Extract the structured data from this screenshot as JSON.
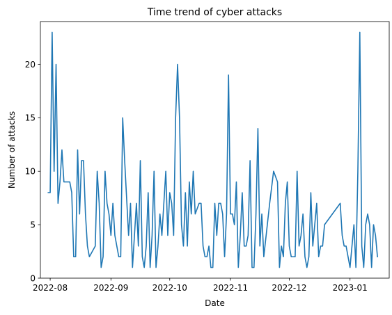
{
  "chart_data": {
    "type": "line",
    "title": "Time trend of cyber attacks",
    "xlabel": "Date",
    "ylabel": "Number of attacks",
    "xlim": [
      "2022-07-27",
      "2023-01-21"
    ],
    "ylim": [
      0,
      24
    ],
    "x_ticks": [
      "2022-08",
      "2022-09",
      "2022-10",
      "2022-11",
      "2022-12",
      "2023-01"
    ],
    "y_ticks": [
      0,
      5,
      10,
      15,
      20
    ],
    "grid": false,
    "legend": "none",
    "series": [
      {
        "color": "#1f77b4",
        "points": [
          [
            "2022-07-31",
            8
          ],
          [
            "2022-08-01",
            8
          ],
          [
            "2022-08-02",
            23
          ],
          [
            "2022-08-03",
            10
          ],
          [
            "2022-08-04",
            20
          ],
          [
            "2022-08-05",
            7
          ],
          [
            "2022-08-06",
            9
          ],
          [
            "2022-08-07",
            12
          ],
          [
            "2022-08-08",
            9
          ],
          [
            "2022-08-09",
            9
          ],
          [
            "2022-08-11",
            9
          ],
          [
            "2022-08-12",
            8
          ],
          [
            "2022-08-13",
            2
          ],
          [
            "2022-08-14",
            2
          ],
          [
            "2022-08-15",
            12
          ],
          [
            "2022-08-16",
            6
          ],
          [
            "2022-08-17",
            11
          ],
          [
            "2022-08-18",
            11
          ],
          [
            "2022-08-19",
            6
          ],
          [
            "2022-08-20",
            3
          ],
          [
            "2022-08-21",
            2
          ],
          [
            "2022-08-24",
            3
          ],
          [
            "2022-08-25",
            10
          ],
          [
            "2022-08-26",
            7
          ],
          [
            "2022-08-27",
            1
          ],
          [
            "2022-08-28",
            2
          ],
          [
            "2022-08-29",
            10
          ],
          [
            "2022-08-30",
            7
          ],
          [
            "2022-08-31",
            6
          ],
          [
            "2022-09-01",
            4
          ],
          [
            "2022-09-02",
            7
          ],
          [
            "2022-09-03",
            4
          ],
          [
            "2022-09-05",
            2
          ],
          [
            "2022-09-06",
            2
          ],
          [
            "2022-09-07",
            15
          ],
          [
            "2022-09-08",
            11
          ],
          [
            "2022-09-10",
            4
          ],
          [
            "2022-09-11",
            7
          ],
          [
            "2022-09-12",
            1
          ],
          [
            "2022-09-13",
            4
          ],
          [
            "2022-09-14",
            7
          ],
          [
            "2022-09-15",
            3
          ],
          [
            "2022-09-16",
            11
          ],
          [
            "2022-09-17",
            2
          ],
          [
            "2022-09-18",
            1
          ],
          [
            "2022-09-19",
            3
          ],
          [
            "2022-09-20",
            8
          ],
          [
            "2022-09-21",
            1
          ],
          [
            "2022-09-22",
            4
          ],
          [
            "2022-09-23",
            10
          ],
          [
            "2022-09-24",
            1
          ],
          [
            "2022-09-25",
            3
          ],
          [
            "2022-09-26",
            6
          ],
          [
            "2022-09-27",
            4
          ],
          [
            "2022-09-28",
            7
          ],
          [
            "2022-09-29",
            10
          ],
          [
            "2022-09-30",
            4
          ],
          [
            "2022-10-01",
            8
          ],
          [
            "2022-10-02",
            7
          ],
          [
            "2022-10-03",
            4
          ],
          [
            "2022-10-04",
            15
          ],
          [
            "2022-10-05",
            20
          ],
          [
            "2022-10-06",
            15
          ],
          [
            "2022-10-07",
            5
          ],
          [
            "2022-10-08",
            3
          ],
          [
            "2022-10-09",
            8
          ],
          [
            "2022-10-10",
            3
          ],
          [
            "2022-10-11",
            9
          ],
          [
            "2022-10-12",
            6
          ],
          [
            "2022-10-13",
            10
          ],
          [
            "2022-10-14",
            6
          ],
          [
            "2022-10-16",
            7
          ],
          [
            "2022-10-17",
            7
          ],
          [
            "2022-10-18",
            3
          ],
          [
            "2022-10-19",
            2
          ],
          [
            "2022-10-20",
            2
          ],
          [
            "2022-10-21",
            3
          ],
          [
            "2022-10-22",
            1
          ],
          [
            "2022-10-23",
            1
          ],
          [
            "2022-10-24",
            7
          ],
          [
            "2022-10-25",
            4
          ],
          [
            "2022-10-26",
            7
          ],
          [
            "2022-10-27",
            7
          ],
          [
            "2022-10-28",
            6
          ],
          [
            "2022-10-29",
            2
          ],
          [
            "2022-10-30",
            6
          ],
          [
            "2022-10-31",
            19
          ],
          [
            "2022-11-01",
            6
          ],
          [
            "2022-11-02",
            6
          ],
          [
            "2022-11-03",
            5
          ],
          [
            "2022-11-04",
            9
          ],
          [
            "2022-11-05",
            1
          ],
          [
            "2022-11-06",
            4
          ],
          [
            "2022-11-07",
            8
          ],
          [
            "2022-11-08",
            3
          ],
          [
            "2022-11-09",
            3
          ],
          [
            "2022-11-10",
            4
          ],
          [
            "2022-11-11",
            11
          ],
          [
            "2022-11-12",
            1
          ],
          [
            "2022-11-13",
            1
          ],
          [
            "2022-11-14",
            6
          ],
          [
            "2022-11-15",
            14
          ],
          [
            "2022-11-16",
            3
          ],
          [
            "2022-11-17",
            6
          ],
          [
            "2022-11-18",
            2
          ],
          [
            "2022-11-21",
            7
          ],
          [
            "2022-11-23",
            10
          ],
          [
            "2022-11-25",
            9
          ],
          [
            "2022-11-26",
            1
          ],
          [
            "2022-11-27",
            3
          ],
          [
            "2022-11-28",
            2
          ],
          [
            "2022-11-29",
            7
          ],
          [
            "2022-11-30",
            9
          ],
          [
            "2022-12-01",
            3
          ],
          [
            "2022-12-02",
            2
          ],
          [
            "2022-12-04",
            2
          ],
          [
            "2022-12-05",
            10
          ],
          [
            "2022-12-06",
            3
          ],
          [
            "2022-12-07",
            4
          ],
          [
            "2022-12-08",
            6
          ],
          [
            "2022-12-09",
            2
          ],
          [
            "2022-12-10",
            1
          ],
          [
            "2022-12-11",
            2
          ],
          [
            "2022-12-12",
            8
          ],
          [
            "2022-12-13",
            3
          ],
          [
            "2022-12-14",
            5
          ],
          [
            "2022-12-15",
            7
          ],
          [
            "2022-12-16",
            2
          ],
          [
            "2022-12-17",
            3
          ],
          [
            "2022-12-18",
            3
          ],
          [
            "2022-12-19",
            5
          ],
          [
            "2022-12-27",
            7
          ],
          [
            "2022-12-28",
            4
          ],
          [
            "2022-12-29",
            3
          ],
          [
            "2022-12-30",
            3
          ],
          [
            "2022-12-31",
            2
          ],
          [
            "2023-01-01",
            1
          ],
          [
            "2023-01-02",
            3
          ],
          [
            "2023-01-03",
            5
          ],
          [
            "2023-01-04",
            1
          ],
          [
            "2023-01-05",
            10
          ],
          [
            "2023-01-06",
            23
          ],
          [
            "2023-01-07",
            3
          ],
          [
            "2023-01-08",
            1
          ],
          [
            "2023-01-09",
            5
          ],
          [
            "2023-01-10",
            6
          ],
          [
            "2023-01-11",
            5
          ],
          [
            "2023-01-12",
            1
          ],
          [
            "2023-01-13",
            5
          ],
          [
            "2023-01-14",
            4
          ],
          [
            "2023-01-15",
            2
          ]
        ]
      }
    ]
  }
}
